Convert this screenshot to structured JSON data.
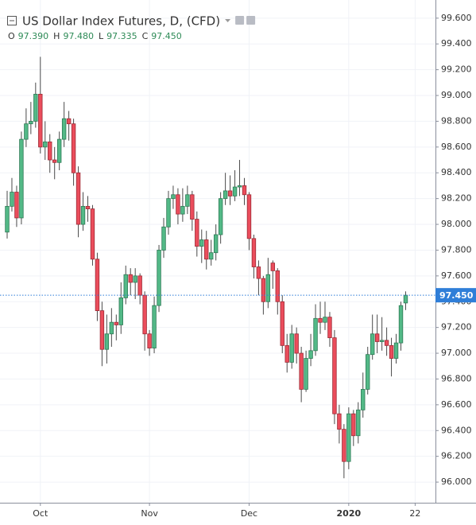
{
  "chart_data": {
    "type": "candlestick",
    "title": "US Dollar Index Futures, D, (CFD)",
    "ohlc_header": [
      {
        "key": "O",
        "label": "97.390"
      },
      {
        "key": "H",
        "label": "97.480"
      },
      {
        "key": "L",
        "label": "97.335"
      },
      {
        "key": "C",
        "label": "97.450"
      }
    ],
    "categories": [
      null,
      null,
      null,
      null,
      null,
      null,
      null,
      "Oct",
      null,
      null,
      null,
      null,
      null,
      null,
      null,
      null,
      null,
      null,
      null,
      null,
      null,
      null,
      null,
      null,
      null,
      null,
      null,
      null,
      null,
      null,
      "Nov",
      null,
      null,
      null,
      null,
      null,
      null,
      null,
      null,
      null,
      null,
      null,
      null,
      null,
      null,
      null,
      null,
      null,
      null,
      null,
      null,
      "Dec",
      null,
      null,
      null,
      null,
      null,
      null,
      null,
      null,
      null,
      null,
      null,
      null,
      null,
      null,
      null,
      null,
      null,
      null,
      null,
      null,
      "2020",
      null,
      null,
      null,
      null,
      null,
      null,
      null,
      null,
      null,
      null,
      null,
      null,
      null,
      "22"
    ],
    "open": [
      97.94,
      98.14,
      98.25,
      98.05,
      98.66,
      98.78,
      98.8,
      99.01,
      98.6,
      98.64,
      98.5,
      98.48,
      98.66,
      98.82,
      98.78,
      98.4,
      98.0,
      98.14,
      98.12,
      97.73,
      97.33,
      97.03,
      97.15,
      97.24,
      97.22,
      97.43,
      97.61,
      97.55,
      97.6,
      97.45,
      97.15,
      97.04,
      97.37,
      97.8,
      97.98,
      98.2,
      98.23,
      98.08,
      98.14,
      98.23,
      98.04,
      97.83,
      97.88,
      97.73,
      97.78,
      97.92,
      98.2,
      98.26,
      98.22,
      98.29,
      98.3,
      98.23,
      97.89,
      97.67,
      97.58,
      97.4,
      97.7,
      97.64,
      97.4,
      97.06,
      96.93,
      97.15,
      97.0,
      96.72,
      96.96,
      97.02,
      97.27,
      97.24,
      97.28,
      97.12,
      96.53,
      96.41,
      96.16,
      96.53,
      96.36,
      96.56,
      96.72,
      96.99,
      97.15,
      97.09,
      97.1,
      97.06,
      96.96,
      97.08,
      97.39,
      null,
      null
    ],
    "high": [
      98.26,
      98.36,
      98.3,
      98.72,
      98.9,
      98.95,
      99.1,
      99.3,
      98.8,
      98.7,
      98.6,
      98.72,
      98.95,
      98.88,
      98.82,
      98.45,
      98.25,
      98.22,
      98.15,
      97.78,
      97.4,
      97.3,
      97.35,
      97.3,
      97.55,
      97.68,
      97.66,
      97.66,
      97.62,
      97.48,
      97.18,
      97.44,
      97.84,
      98.05,
      98.26,
      98.3,
      98.28,
      98.28,
      98.3,
      98.26,
      98.1,
      97.96,
      97.95,
      97.88,
      98.0,
      98.25,
      98.4,
      98.38,
      98.42,
      98.5,
      98.36,
      98.25,
      97.92,
      97.72,
      97.6,
      97.74,
      97.72,
      97.66,
      97.45,
      97.15,
      97.22,
      97.2,
      97.05,
      97.02,
      97.15,
      97.38,
      97.4,
      97.4,
      97.32,
      97.18,
      96.6,
      96.45,
      96.58,
      96.56,
      96.62,
      96.85,
      97.05,
      97.3,
      97.3,
      97.28,
      97.2,
      97.12,
      97.15,
      97.4,
      97.48,
      null,
      null
    ],
    "low": [
      97.89,
      98.1,
      97.98,
      98.0,
      98.6,
      98.7,
      98.75,
      98.55,
      98.5,
      98.4,
      98.35,
      98.42,
      98.6,
      98.65,
      98.3,
      97.9,
      97.95,
      98.02,
      97.68,
      97.25,
      96.9,
      96.92,
      97.05,
      97.1,
      97.15,
      97.38,
      97.45,
      97.42,
      97.38,
      97.02,
      96.98,
      97.0,
      97.32,
      97.74,
      97.92,
      98.12,
      98.0,
      98.02,
      98.08,
      97.95,
      97.75,
      97.7,
      97.65,
      97.68,
      97.72,
      97.85,
      98.15,
      98.15,
      98.18,
      98.22,
      98.15,
      97.8,
      97.58,
      97.45,
      97.3,
      97.35,
      97.5,
      97.3,
      97.0,
      96.85,
      96.88,
      96.92,
      96.62,
      96.7,
      96.9,
      96.98,
      97.15,
      97.18,
      97.05,
      96.45,
      96.3,
      96.03,
      96.1,
      96.28,
      96.3,
      96.5,
      96.68,
      96.95,
      97.0,
      97.02,
      96.98,
      96.82,
      96.92,
      97.02,
      97.335,
      null,
      null
    ],
    "close": [
      98.14,
      98.25,
      98.05,
      98.66,
      98.78,
      98.8,
      99.01,
      98.6,
      98.64,
      98.5,
      98.48,
      98.66,
      98.82,
      98.78,
      98.4,
      98.0,
      98.14,
      98.12,
      97.73,
      97.33,
      97.03,
      97.15,
      97.24,
      97.22,
      97.43,
      97.61,
      97.55,
      97.6,
      97.45,
      97.15,
      97.04,
      97.37,
      97.8,
      97.98,
      98.2,
      98.23,
      98.08,
      98.14,
      98.23,
      98.04,
      97.83,
      97.88,
      97.73,
      97.78,
      97.92,
      98.2,
      98.26,
      98.22,
      98.29,
      98.3,
      98.23,
      97.89,
      97.67,
      97.58,
      97.4,
      97.61,
      97.64,
      97.4,
      97.06,
      96.93,
      97.15,
      97.0,
      96.72,
      96.96,
      97.02,
      97.27,
      97.24,
      97.28,
      97.12,
      96.53,
      96.41,
      96.16,
      96.53,
      96.36,
      96.56,
      96.72,
      96.99,
      97.15,
      97.09,
      97.1,
      97.06,
      96.96,
      97.08,
      97.37,
      97.45,
      null,
      null
    ],
    "up_color": "#53b987",
    "down_color": "#eb4d5c",
    "last_price": {
      "value": 97.45,
      "label": "97.450"
    },
    "last_price_color": "#2f7ed8",
    "ylim": [
      95.84,
      99.71
    ],
    "yticks": [
      {
        "value": 96.0,
        "label": "96.000"
      },
      {
        "value": 96.2,
        "label": "96.200"
      },
      {
        "value": 96.4,
        "label": "96.400"
      },
      {
        "value": 96.6,
        "label": "96.600"
      },
      {
        "value": 96.8,
        "label": "96.800"
      },
      {
        "value": 97.0,
        "label": "97.000"
      },
      {
        "value": 97.2,
        "label": "97.200"
      },
      {
        "value": 97.4,
        "label": "97.400"
      },
      {
        "value": 97.6,
        "label": "97.600"
      },
      {
        "value": 97.8,
        "label": "97.800"
      },
      {
        "value": 98.0,
        "label": "98.000"
      },
      {
        "value": 98.2,
        "label": "98.200"
      },
      {
        "value": 98.4,
        "label": "98.400"
      },
      {
        "value": 98.6,
        "label": "98.600"
      },
      {
        "value": 98.8,
        "label": "98.800"
      },
      {
        "value": 99.0,
        "label": "99.000"
      },
      {
        "value": 99.2,
        "label": "99.200"
      },
      {
        "value": 99.4,
        "label": "99.400"
      },
      {
        "value": 99.6,
        "label": "99.600"
      }
    ],
    "grid": true
  }
}
